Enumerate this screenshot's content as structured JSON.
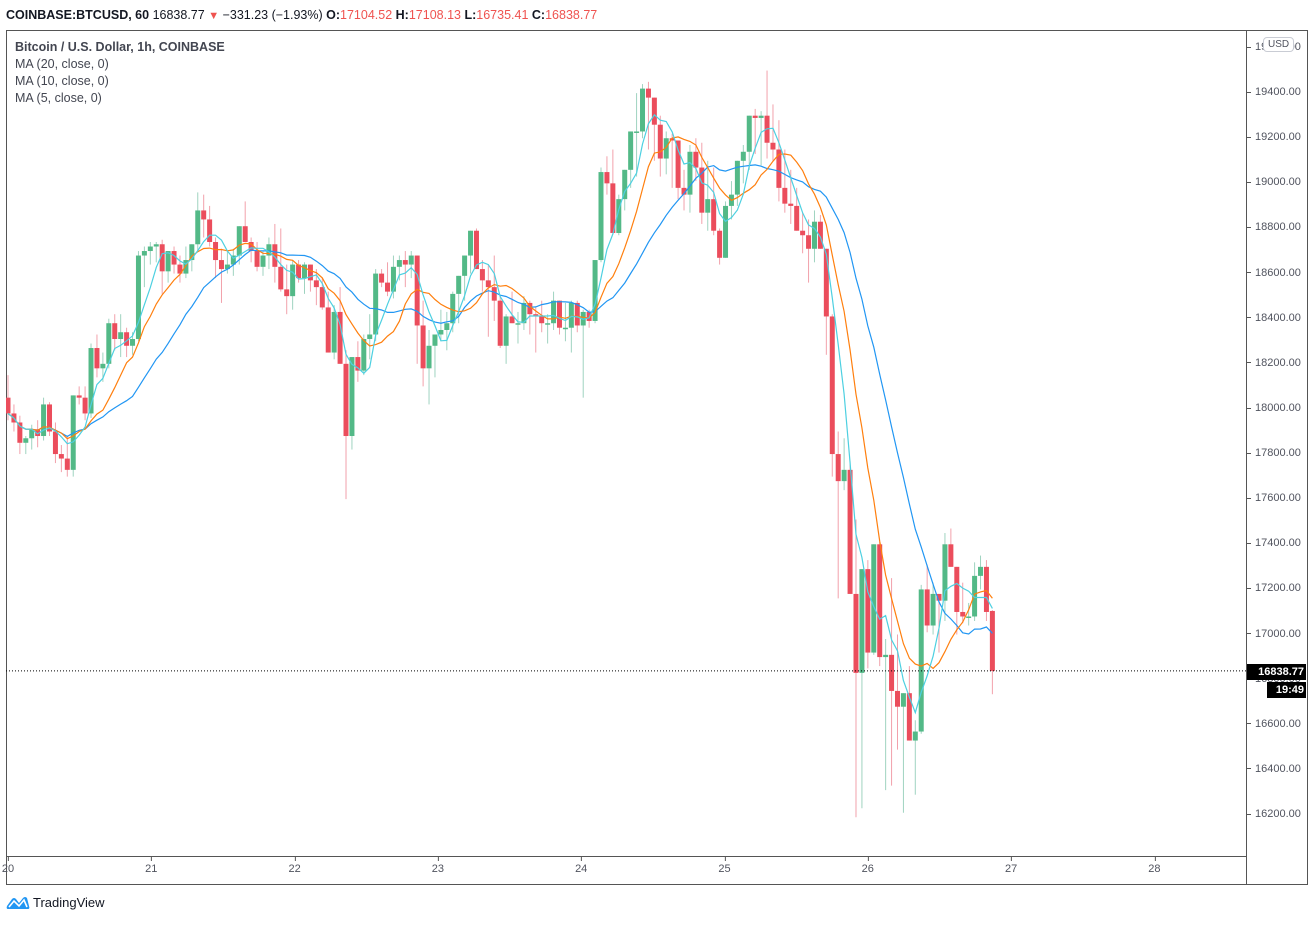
{
  "header": {
    "symbol": "COINBASE:BTCUSD, 60",
    "last": "16838.77",
    "change": "−331.23 (−1.93%)",
    "open_label": "O:",
    "open": "17104.52",
    "high_label": "H:",
    "high": "17108.13",
    "low_label": "L:",
    "low": "16735.41",
    "close_label": "C:",
    "close": "16838.77"
  },
  "legend": {
    "title": "Bitcoin / U.S. Dollar, 1h, COINBASE",
    "ma20": "MA (20, close, 0)",
    "ma10": "MA (10, close, 0)",
    "ma5": "MA (5, close, 0)"
  },
  "price_axis": {
    "currency": "USD",
    "last_price_label": "16838.77",
    "countdown": "19:49"
  },
  "branding": {
    "name": "TradingView"
  },
  "colors": {
    "up": "#53b987",
    "down": "#eb4d5c",
    "ma20": "#2196f3",
    "ma10": "#ff7f0e",
    "ma5": "#4dd0e1",
    "frame": "#555555"
  },
  "chart_data": {
    "type": "candlestick",
    "title": "Bitcoin / U.S. Dollar, 1h, COINBASE",
    "xlabel": "",
    "ylabel": "USD",
    "ylim": [
      16000,
      19700
    ],
    "yticks": [
      16200,
      16400,
      16600,
      16800,
      17000,
      17200,
      17400,
      17600,
      17800,
      18000,
      18200,
      18400,
      18600,
      18800,
      19000,
      19200,
      19400,
      19600
    ],
    "xticks": [
      "20",
      "21",
      "22",
      "23",
      "24",
      "25",
      "26",
      "27",
      "28"
    ],
    "grid": false,
    "last_price": 16838.77,
    "series_ma": [
      "MA (20, close, 0)",
      "MA (10, close, 0)",
      "MA (5, close, 0)"
    ],
    "candles": [
      [
        18050,
        18150,
        17950,
        17980
      ],
      [
        17980,
        18020,
        17900,
        17940
      ],
      [
        17940,
        17970,
        17800,
        17850
      ],
      [
        17850,
        17880,
        17800,
        17870
      ],
      [
        17870,
        17930,
        17820,
        17910
      ],
      [
        17910,
        17950,
        17830,
        17880
      ],
      [
        17880,
        18050,
        17860,
        18020
      ],
      [
        18020,
        18030,
        17880,
        17900
      ],
      [
        17900,
        17940,
        17760,
        17800
      ],
      [
        17800,
        17840,
        17720,
        17780
      ],
      [
        17780,
        17880,
        17700,
        17730
      ],
      [
        17730,
        18060,
        17700,
        18060
      ],
      [
        18060,
        18100,
        18020,
        18050
      ],
      [
        18050,
        18100,
        17950,
        17980
      ],
      [
        17980,
        18290,
        17960,
        18270
      ],
      [
        18270,
        18330,
        18140,
        18180
      ],
      [
        18180,
        18250,
        18120,
        18200
      ],
      [
        18200,
        18400,
        18180,
        18380
      ],
      [
        18380,
        18420,
        18260,
        18310
      ],
      [
        18310,
        18420,
        18230,
        18340
      ],
      [
        18340,
        18360,
        18230,
        18280
      ],
      [
        18280,
        18340,
        18240,
        18310
      ],
      [
        18310,
        18700,
        18300,
        18680
      ],
      [
        18680,
        18720,
        18540,
        18700
      ],
      [
        18700,
        18740,
        18640,
        18720
      ],
      [
        18720,
        18740,
        18650,
        18730
      ],
      [
        18730,
        18750,
        18510,
        18610
      ],
      [
        18610,
        18700,
        18560,
        18700
      ],
      [
        18700,
        18720,
        18600,
        18640
      ],
      [
        18640,
        18680,
        18560,
        18600
      ],
      [
        18600,
        18720,
        18580,
        18660
      ],
      [
        18660,
        18730,
        18610,
        18730
      ],
      [
        18730,
        18960,
        18700,
        18880
      ],
      [
        18880,
        18950,
        18760,
        18840
      ],
      [
        18840,
        18900,
        18720,
        18740
      ],
      [
        18740,
        18760,
        18580,
        18660
      ],
      [
        18660,
        18710,
        18470,
        18620
      ],
      [
        18620,
        18700,
        18600,
        18640
      ],
      [
        18640,
        18710,
        18590,
        18680
      ],
      [
        18680,
        18800,
        18640,
        18810
      ],
      [
        18810,
        18920,
        18740,
        18740
      ],
      [
        18740,
        18760,
        18650,
        18700
      ],
      [
        18700,
        18740,
        18610,
        18630
      ],
      [
        18630,
        18700,
        18590,
        18680
      ],
      [
        18680,
        18760,
        18620,
        18730
      ],
      [
        18730,
        18820,
        18560,
        18630
      ],
      [
        18630,
        18800,
        18520,
        18530
      ],
      [
        18530,
        18640,
        18420,
        18500
      ],
      [
        18500,
        18660,
        18440,
        18640
      ],
      [
        18640,
        18660,
        18560,
        18580
      ],
      [
        18580,
        18650,
        18510,
        18640
      ],
      [
        18640,
        18640,
        18520,
        18570
      ],
      [
        18570,
        18620,
        18460,
        18540
      ],
      [
        18540,
        18580,
        18440,
        18450
      ],
      [
        18450,
        18520,
        18300,
        18250
      ],
      [
        18250,
        18460,
        18220,
        18430
      ],
      [
        18430,
        18540,
        18220,
        18200
      ],
      [
        18200,
        18260,
        17600,
        17880
      ],
      [
        17880,
        18200,
        17820,
        18230
      ],
      [
        18230,
        18300,
        18120,
        18170
      ],
      [
        18170,
        18330,
        18150,
        18310
      ],
      [
        18310,
        18420,
        18220,
        18330
      ],
      [
        18330,
        18620,
        18300,
        18600
      ],
      [
        18600,
        18620,
        18540,
        18560
      ],
      [
        18560,
        18650,
        18500,
        18520
      ],
      [
        18520,
        18680,
        18490,
        18630
      ],
      [
        18630,
        18680,
        18570,
        18660
      ],
      [
        18660,
        18700,
        18540,
        18640
      ],
      [
        18640,
        18700,
        18580,
        18680
      ],
      [
        18680,
        18680,
        18200,
        18370
      ],
      [
        18370,
        18480,
        18100,
        18180
      ],
      [
        18180,
        18350,
        18020,
        18280
      ],
      [
        18280,
        18300,
        18140,
        18330
      ],
      [
        18330,
        18440,
        18300,
        18350
      ],
      [
        18350,
        18430,
        18260,
        18380
      ],
      [
        18380,
        18520,
        18340,
        18510
      ],
      [
        18510,
        18560,
        18380,
        18590
      ],
      [
        18590,
        18670,
        18480,
        18680
      ],
      [
        18680,
        18770,
        18600,
        18790
      ],
      [
        18790,
        18800,
        18620,
        18620
      ],
      [
        18620,
        18660,
        18520,
        18570
      ],
      [
        18570,
        18640,
        18320,
        18540
      ],
      [
        18540,
        18680,
        18390,
        18480
      ],
      [
        18480,
        18500,
        18270,
        18280
      ],
      [
        18280,
        18420,
        18200,
        18410
      ],
      [
        18410,
        18520,
        18380,
        18380
      ],
      [
        18380,
        18430,
        18290,
        18380
      ],
      [
        18380,
        18500,
        18350,
        18470
      ],
      [
        18470,
        18480,
        18330,
        18420
      ],
      [
        18420,
        18450,
        18250,
        18410
      ],
      [
        18410,
        18480,
        18340,
        18380
      ],
      [
        18380,
        18420,
        18290,
        18380
      ],
      [
        18380,
        18520,
        18350,
        18480
      ],
      [
        18480,
        18470,
        18330,
        18360
      ],
      [
        18360,
        18470,
        18300,
        18360
      ],
      [
        18360,
        18480,
        18250,
        18470
      ],
      [
        18470,
        18480,
        18340,
        18370
      ],
      [
        18370,
        18440,
        18050,
        18430
      ],
      [
        18430,
        18440,
        18360,
        18390
      ],
      [
        18390,
        18660,
        18380,
        18660
      ],
      [
        18660,
        19070,
        18650,
        19050
      ],
      [
        19050,
        19120,
        18950,
        19000
      ],
      [
        19000,
        19150,
        18780,
        18780
      ],
      [
        18780,
        18950,
        18770,
        18930
      ],
      [
        18930,
        19050,
        18880,
        19060
      ],
      [
        19060,
        19190,
        18980,
        19230
      ],
      [
        19230,
        19400,
        19030,
        19230
      ],
      [
        19230,
        19440,
        19200,
        19420
      ],
      [
        19420,
        19450,
        19150,
        19380
      ],
      [
        19380,
        19350,
        19100,
        19260
      ],
      [
        19260,
        19300,
        19030,
        19110
      ],
      [
        19110,
        19230,
        19040,
        19200
      ],
      [
        19200,
        19220,
        18980,
        19190
      ],
      [
        19190,
        19180,
        18930,
        18980
      ],
      [
        18980,
        19060,
        18880,
        18950
      ],
      [
        18950,
        19170,
        18870,
        19140
      ],
      [
        19140,
        19200,
        19010,
        19070
      ],
      [
        19070,
        19180,
        18820,
        18870
      ],
      [
        18870,
        19100,
        18790,
        18930
      ],
      [
        18930,
        19070,
        18770,
        18790
      ],
      [
        18790,
        18800,
        18640,
        18670
      ],
      [
        18670,
        18920,
        18700,
        18900
      ],
      [
        18900,
        19010,
        18840,
        18950
      ],
      [
        18950,
        19100,
        18900,
        19100
      ],
      [
        19100,
        19170,
        19000,
        19140
      ],
      [
        19140,
        19300,
        19060,
        19300
      ],
      [
        19300,
        19330,
        19130,
        19290
      ],
      [
        19290,
        19320,
        19080,
        19300
      ],
      [
        19300,
        19500,
        19110,
        19180
      ],
      [
        19180,
        19350,
        19100,
        19150
      ],
      [
        19150,
        19280,
        18920,
        18980
      ],
      [
        18980,
        19150,
        18870,
        18910
      ],
      [
        18910,
        19060,
        18820,
        18900
      ],
      [
        18900,
        18980,
        18800,
        18790
      ],
      [
        18790,
        18870,
        18690,
        18770
      ],
      [
        18770,
        18840,
        18560,
        18710
      ],
      [
        18710,
        18880,
        18650,
        18830
      ],
      [
        18830,
        18860,
        18740,
        18710
      ],
      [
        18710,
        18690,
        18240,
        18410
      ],
      [
        18410,
        18420,
        17700,
        17800
      ],
      [
        17800,
        17900,
        17160,
        17680
      ],
      [
        17680,
        17870,
        17640,
        17730
      ],
      [
        17730,
        17770,
        17300,
        17180
      ],
      [
        17180,
        17510,
        16190,
        16830
      ],
      [
        16830,
        17250,
        16230,
        17290
      ],
      [
        17290,
        17330,
        16850,
        16920
      ],
      [
        16920,
        17380,
        16910,
        17400
      ],
      [
        17400,
        17410,
        16860,
        16900
      ],
      [
        16900,
        16980,
        16310,
        16910
      ],
      [
        16910,
        17250,
        16330,
        16750
      ],
      [
        16750,
        17000,
        16490,
        16680
      ],
      [
        16680,
        16730,
        16210,
        16740
      ],
      [
        16740,
        16860,
        16570,
        16530
      ],
      [
        16530,
        16620,
        16290,
        16570
      ],
      [
        16570,
        17220,
        16560,
        17200
      ],
      [
        17200,
        17310,
        17010,
        17040
      ],
      [
        17040,
        17230,
        17000,
        17180
      ],
      [
        17180,
        17150,
        16920,
        17150
      ],
      [
        17150,
        17450,
        17060,
        17400
      ],
      [
        17400,
        17470,
        17320,
        17300
      ],
      [
        17300,
        17280,
        17000,
        17100
      ],
      [
        17100,
        17230,
        17050,
        17080
      ],
      [
        17080,
        17140,
        17040,
        17080
      ],
      [
        17080,
        17320,
        17060,
        17260
      ],
      [
        17260,
        17350,
        17200,
        17300
      ],
      [
        17300,
        17330,
        17060,
        17100
      ],
      [
        17104.52,
        17108.13,
        16735.41,
        16838.77
      ]
    ]
  }
}
